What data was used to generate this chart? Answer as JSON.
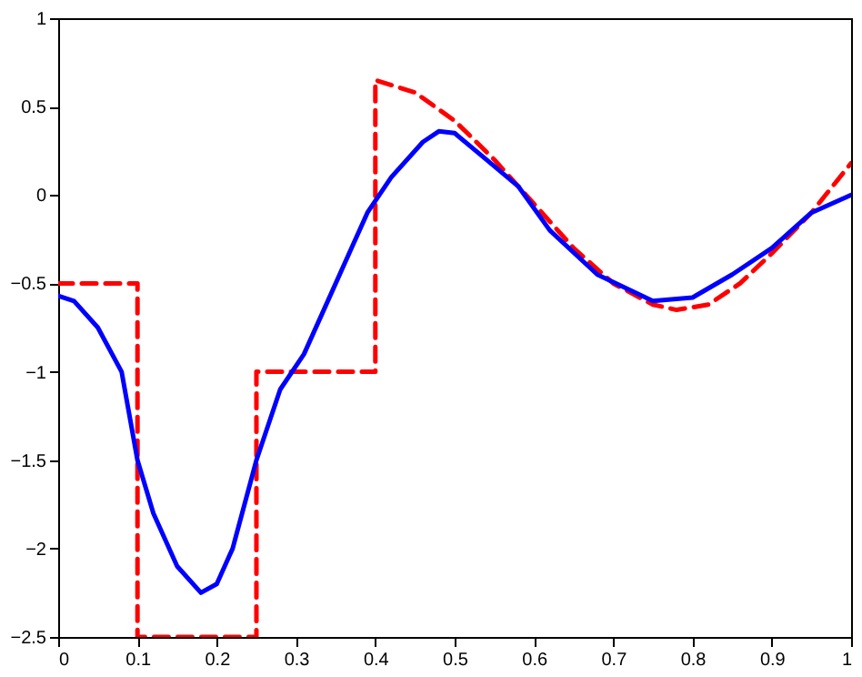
{
  "chart_data": {
    "type": "line",
    "xlim": [
      0,
      1
    ],
    "ylim": [
      -2.5,
      1
    ],
    "xticks": [
      0,
      0.1,
      0.2,
      0.3,
      0.4,
      0.5,
      0.6,
      0.7,
      0.8,
      0.9,
      1
    ],
    "yticks": [
      -2.5,
      -2,
      -1.5,
      -1,
      -0.5,
      0,
      0.5,
      1
    ],
    "grid": false,
    "marker": "none",
    "series": [
      {
        "color": "#ff0000",
        "line_style": "dashed",
        "x": [
          0,
          0.1,
          0.1,
          0.25,
          0.25,
          0.4,
          0.4,
          0.45,
          0.5,
          0.55,
          0.6,
          0.65,
          0.7,
          0.75,
          0.78,
          0.82,
          0.86,
          0.9,
          0.95,
          1
        ],
        "values": [
          -0.5,
          -0.5,
          -2.5,
          -2.5,
          -1,
          -1,
          0.65,
          0.58,
          0.42,
          0.2,
          -0.05,
          -0.3,
          -0.5,
          -0.62,
          -0.65,
          -0.62,
          -0.5,
          -0.33,
          -0.1,
          0.18
        ]
      },
      {
        "color": "#0000ff",
        "line_style": "solid",
        "x": [
          0,
          0.02,
          0.05,
          0.08,
          0.1,
          0.12,
          0.15,
          0.18,
          0.2,
          0.22,
          0.25,
          0.28,
          0.31,
          0.34,
          0.37,
          0.39,
          0.42,
          0.46,
          0.48,
          0.5,
          0.54,
          0.58,
          0.62,
          0.68,
          0.75,
          0.8,
          0.85,
          0.9,
          0.95,
          1
        ],
        "values": [
          -0.57,
          -0.6,
          -0.75,
          -1.0,
          -1.5,
          -1.8,
          -2.1,
          -2.25,
          -2.2,
          -2.0,
          -1.5,
          -1.1,
          -0.9,
          -0.6,
          -0.3,
          -0.1,
          0.1,
          0.3,
          0.36,
          0.35,
          0.2,
          0.05,
          -0.2,
          -0.45,
          -0.6,
          -0.58,
          -0.45,
          -0.3,
          -0.1,
          0
        ]
      }
    ]
  }
}
